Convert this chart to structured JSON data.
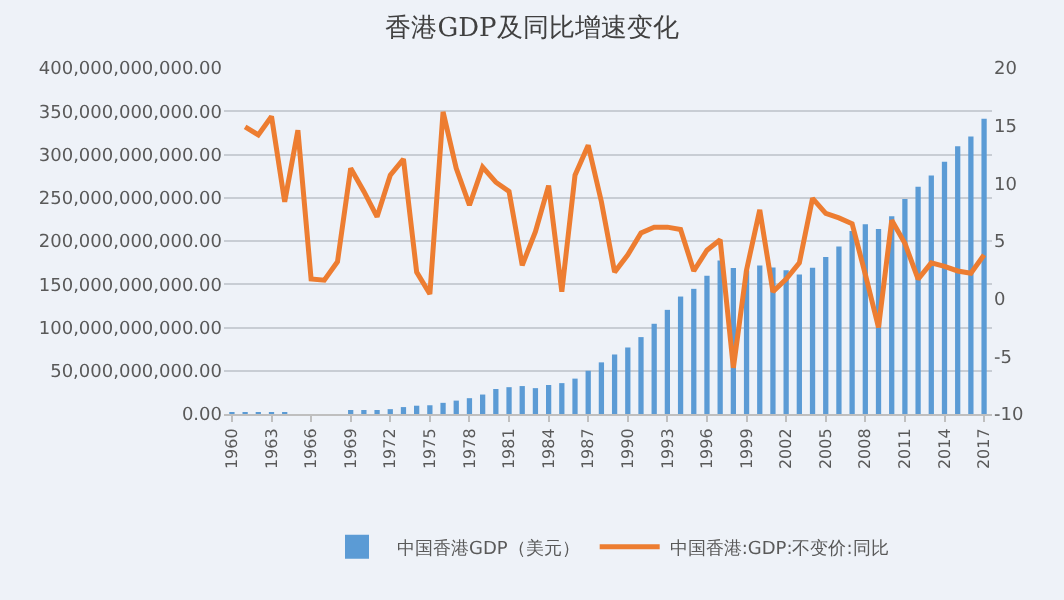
{
  "chart_data": {
    "type": "bar",
    "title": "香港GDP及同比增速变化",
    "categories": [
      "1960",
      null,
      null,
      "1963",
      null,
      null,
      "1966",
      null,
      null,
      "1969",
      null,
      null,
      "1972",
      null,
      null,
      "1975",
      null,
      null,
      "1978",
      null,
      null,
      "1981",
      null,
      null,
      "1984",
      null,
      null,
      "1987",
      null,
      null,
      "1990",
      null,
      null,
      "1993",
      null,
      null,
      "1996",
      null,
      null,
      "1999",
      null,
      null,
      "2002",
      null,
      null,
      "2005",
      null,
      null,
      "2008",
      null,
      null,
      "2011",
      null,
      null,
      "2014",
      null,
      null,
      "2017"
    ],
    "series": [
      {
        "name": "中国香港GDP（美元）",
        "color": "#5b9bd5",
        "values": [
          1300000000,
          1400000000,
          1600000000,
          1900000000,
          2200000000,
          null,
          null,
          null,
          null,
          3800000000,
          3800000000,
          4500000000,
          5600000000,
          8000000000,
          9600000000,
          10100000000,
          12900000000,
          15500000000,
          18300000000,
          22500000000,
          28900000000,
          31000000000,
          32300000000,
          29900000000,
          33500000000,
          35700000000,
          40900000000,
          50000000000,
          59700000000,
          68800000000,
          76900000000,
          88900000000,
          104300000000,
          120400000000,
          135800000000,
          144700000000,
          159700000000,
          177400000000,
          168900000000,
          165800000000,
          171700000000,
          169400000000,
          166300000000,
          161400000000,
          169100000000,
          181600000000,
          193500000000,
          211600000000,
          219300000000,
          214000000000,
          228600000000,
          248500000000,
          262600000000,
          275700000000,
          291500000000,
          309400000000,
          320900000000,
          341400000000
        ]
      },
      {
        "name": "中国香港:GDP:不变价:同比",
        "type": "line",
        "axis": "y2",
        "color": "#ed7d31",
        "values": [
          null,
          14.9,
          14.2,
          15.8,
          8.4,
          14.6,
          1.7,
          1.6,
          3.2,
          11.3,
          9.3,
          7.1,
          10.7,
          12.1,
          2.3,
          0.4,
          16.2,
          11.3,
          8.1,
          11.4,
          10.1,
          9.3,
          2.9,
          5.8,
          9.8,
          0.6,
          10.7,
          13.3,
          8.4,
          2.3,
          3.8,
          5.7,
          6.2,
          6.2,
          6.0,
          2.4,
          4.2,
          5.1,
          -6.0,
          2.5,
          7.7,
          0.6,
          1.7,
          3.1,
          8.7,
          7.4,
          7.0,
          6.5,
          2.1,
          -2.5,
          6.8,
          4.8,
          1.7,
          3.1,
          2.8,
          2.4,
          2.2,
          3.8
        ]
      }
    ],
    "ylim": [
      0,
      400000000000
    ],
    "yticks": [
      {
        "value": 0,
        "label": "0.00"
      },
      {
        "value": 50000000000,
        "label": "50,000,000,000.00"
      },
      {
        "value": 100000000000,
        "label": "100,000,000,000.00"
      },
      {
        "value": 150000000000,
        "label": "150,000,000,000.00"
      },
      {
        "value": 200000000000,
        "label": "200,000,000,000.00"
      },
      {
        "value": 250000000000,
        "label": "250,000,000,000.00"
      },
      {
        "value": 300000000000,
        "label": "300,000,000,000.00"
      },
      {
        "value": 350000000000,
        "label": "350,000,000,000.00"
      },
      {
        "value": 400000000000,
        "label": "400,000,000,000.00"
      }
    ],
    "y2lim": [
      -10,
      20
    ],
    "y2ticks": [
      -10,
      -5,
      0,
      5,
      10,
      15,
      20
    ],
    "grid": "y",
    "legend": "bottom",
    "marker": "none",
    "line_style": "solid"
  }
}
